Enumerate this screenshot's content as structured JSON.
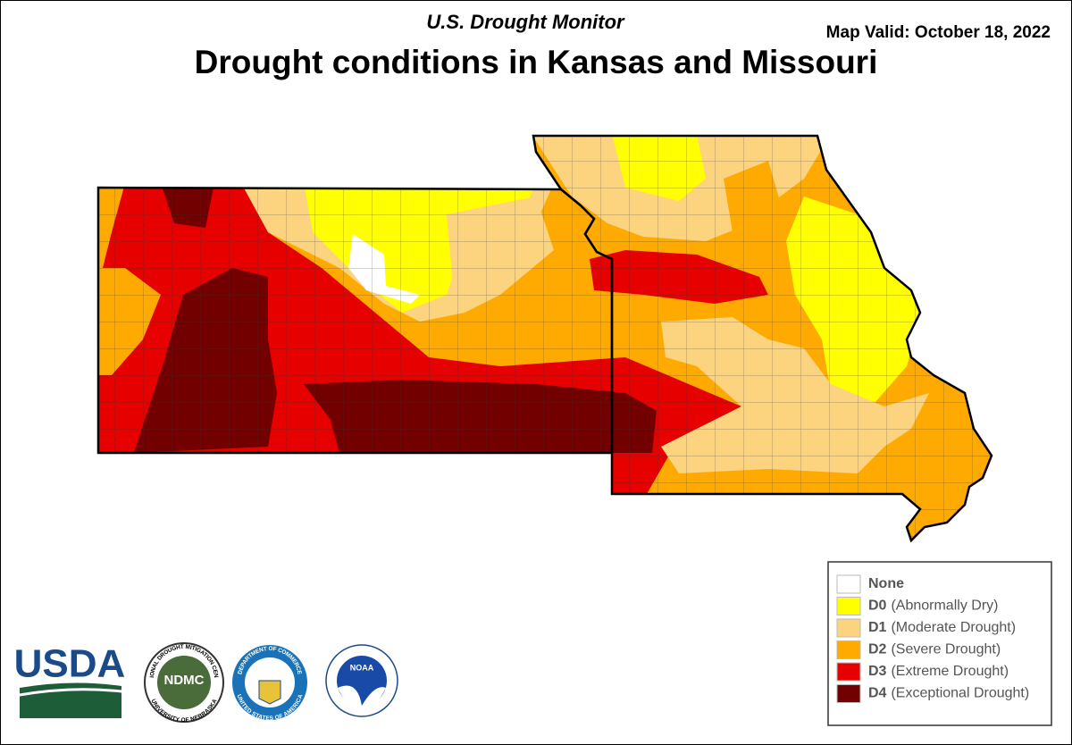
{
  "header": {
    "subtitle": "U.S. Drought Monitor",
    "title": "Drought conditions in Kansas and Missouri",
    "valid_date": "Map Valid: October 18, 2022"
  },
  "legend": {
    "items": [
      {
        "code": "None",
        "color": "#ffffff"
      },
      {
        "code": "D0",
        "description": "(Abnormally Dry)",
        "color": "#ffff00"
      },
      {
        "code": "D1",
        "description": "(Moderate Drought)",
        "color": "#fcd37f"
      },
      {
        "code": "D2",
        "description": "(Severe Drought)",
        "color": "#ffaa00"
      },
      {
        "code": "D3",
        "description": "(Extreme Drought)",
        "color": "#e60000"
      },
      {
        "code": "D4",
        "description": "(Exceptional Drought)",
        "color": "#730000"
      }
    ]
  },
  "logos": {
    "usda": "USDA",
    "ndmc": "NDMC",
    "ndmc_ring_top": "NATIONAL DROUGHT MITIGATION CENTER",
    "ndmc_ring_bottom": "UNIVERSITY OF NEBRASKA",
    "doc_ring_top": "DEPARTMENT OF COMMERCE",
    "doc_ring_bottom": "UNITED STATES OF AMERICA",
    "noaa": "NOAA"
  }
}
